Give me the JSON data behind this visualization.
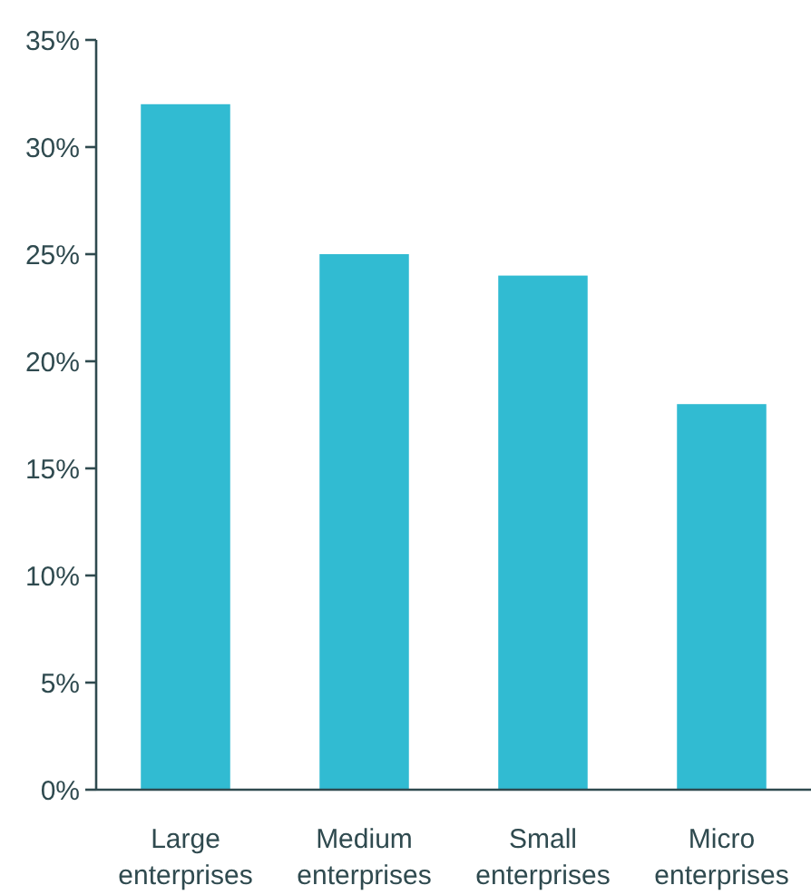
{
  "chart_data": {
    "type": "bar",
    "categories": [
      "Large enterprises",
      "Medium enterprises",
      "Small enterprises",
      "Micro enterprises"
    ],
    "values": [
      32,
      25,
      24,
      18
    ],
    "color": "#31bbd2",
    "ylim": [
      0,
      35
    ],
    "yticks": [
      {
        "value": 0,
        "label": "0%"
      },
      {
        "value": 5,
        "label": "5%"
      },
      {
        "value": 10,
        "label": "10%"
      },
      {
        "value": 15,
        "label": "15%"
      },
      {
        "value": 20,
        "label": "20%"
      },
      {
        "value": 25,
        "label": "25%"
      },
      {
        "value": 30,
        "label": "30%"
      },
      {
        "value": 35,
        "label": "35%"
      }
    ],
    "grid": false
  }
}
